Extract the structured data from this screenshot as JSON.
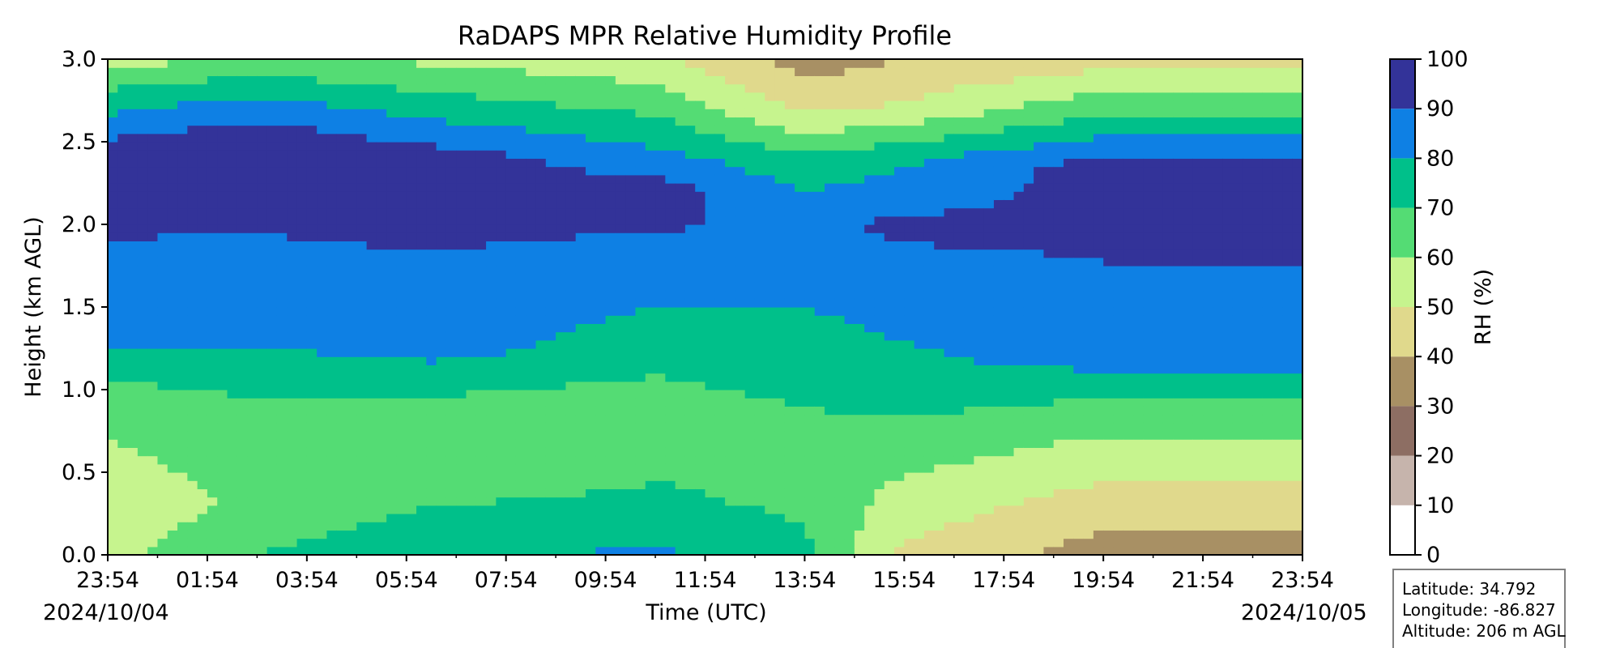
{
  "chart_data": {
    "type": "heatmap",
    "title": "RaDAPS MPR Relative Humidity Profile",
    "xlabel": "Time (UTC)",
    "ylabel": "Height (km AGL)",
    "colorbar_label": "RH (%)",
    "x_ticks": [
      "23:54",
      "01:54",
      "03:54",
      "05:54",
      "07:54",
      "09:54",
      "11:54",
      "13:54",
      "15:54",
      "17:54",
      "19:54",
      "21:54",
      "23:54"
    ],
    "x_range": [
      "2024-10-04 23:54",
      "2024-10-05 23:54"
    ],
    "y_ticks": [
      "0.0",
      "0.5",
      "1.0",
      "1.5",
      "2.0",
      "2.5",
      "3.0"
    ],
    "ylim": [
      0,
      3.0
    ],
    "date_start_label": "2024/10/04",
    "date_end_label": "2024/10/05",
    "levels": [
      0,
      10,
      20,
      30,
      40,
      50,
      60,
      70,
      80,
      90,
      100
    ],
    "level_labels": [
      "0",
      "10",
      "20",
      "30",
      "40",
      "50",
      "60",
      "70",
      "80",
      "90",
      "100"
    ],
    "level_colors": [
      "#ffffff",
      "#c6b4ac",
      "#8d6e63",
      "#a89064",
      "#e0d98c",
      "#c6f48e",
      "#54dc74",
      "#00c08a",
      "#0e80e4",
      "#333399"
    ],
    "rh_profiles": [
      {
        "time": "00:00",
        "heights_km": [
          0,
          0.3,
          0.8,
          1.1,
          1.38,
          2.45,
          2.6,
          2.75,
          2.9,
          3.0
        ],
        "rh": [
          58,
          52,
          62,
          72,
          85,
          95,
          85,
          75,
          65,
          55
        ]
      },
      {
        "time": "02:54",
        "heights_km": [
          0,
          0.3,
          0.5,
          1.1,
          1.35,
          2.55,
          2.75,
          3.0
        ],
        "rh": [
          70,
          63,
          65,
          72,
          85,
          95,
          82,
          62
        ]
      },
      {
        "time": "06:30",
        "heights_km": [
          0,
          0.3,
          0.6,
          1.05,
          1.25,
          2.4,
          2.6,
          3.0
        ],
        "rh": [
          78,
          70,
          62,
          72,
          85,
          95,
          82,
          58
        ]
      },
      {
        "time": "11:00",
        "heights_km": [
          0,
          0.3,
          0.8,
          1.2,
          1.7,
          2.2,
          2.5,
          3.0
        ],
        "rh": [
          82,
          72,
          65,
          72,
          85,
          95,
          78,
          52
        ]
      },
      {
        "time": "13:54",
        "heights_km": [
          0,
          0.6,
          1.2,
          2.0,
          2.4,
          2.7,
          3.0
        ],
        "rh": [
          72,
          65,
          75,
          88,
          72,
          48,
          35
        ]
      },
      {
        "time": "15:54",
        "heights_km": [
          0,
          0.4,
          1.0,
          2.0,
          2.4,
          2.7,
          3.0
        ],
        "rh": [
          48,
          58,
          75,
          92,
          78,
          52,
          40
        ]
      },
      {
        "time": "19:54",
        "heights_km": [
          0,
          0.2,
          0.6,
          0.95,
          1.2,
          2.35,
          2.6,
          3.0
        ],
        "rh": [
          35,
          42,
          55,
          70,
          85,
          95,
          75,
          45
        ]
      },
      {
        "time": "23:54",
        "heights_km": [
          0,
          0.5,
          0.8,
          1.1,
          1.4,
          2.35,
          2.6,
          3.0
        ],
        "rh": [
          35,
          45,
          55,
          72,
          85,
          95,
          68,
          45
        ]
      }
    ]
  },
  "info_box": {
    "latitude": "Latitude: 34.792",
    "longitude": "Longitude: -86.827",
    "altitude": "Altitude: 206 m AGL"
  }
}
